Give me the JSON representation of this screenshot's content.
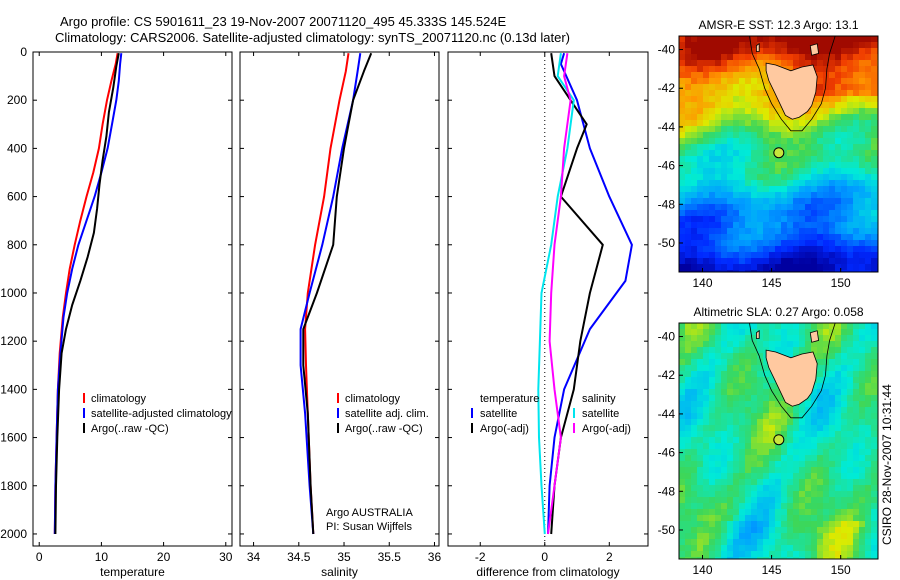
{
  "header": {
    "line1": "Argo profile: CS 5901611_23 19-Nov-2007 20071120_495 45.333S 145.524E",
    "line2": "Climatology: CARS2006. Satellite-adjusted climatology: synTS_20071120.nc (0.13d later)"
  },
  "side_label": "CSIRO 28-Nov-2007 10:31:44",
  "credit": {
    "line1": "Argo AUSTRALIA",
    "line2": "PI: Susan Wijffels"
  },
  "colors": {
    "red": "#ff0000",
    "blue": "#0000ff",
    "black": "#000000",
    "cyan": "#00e5ee",
    "magenta": "#ff00ff",
    "land": "#ffc9a0"
  },
  "chart_data": [
    {
      "id": "temperature",
      "type": "line",
      "xlabel": "temperature",
      "ylabel": "",
      "xlim": [
        -1,
        31
      ],
      "ylim": [
        2050,
        0
      ],
      "xticks": [
        "0",
        "10",
        "20",
        "30"
      ],
      "xtick_values": [
        0,
        10,
        20,
        30
      ],
      "yticks": [
        "0",
        "200",
        "400",
        "600",
        "800",
        "1000",
        "1200",
        "1400",
        "1600",
        "1800",
        "2000"
      ],
      "ytick_values": [
        0,
        200,
        400,
        600,
        800,
        1000,
        1200,
        1400,
        1600,
        1800,
        2000
      ],
      "legend": [
        "climatology",
        "satellite-adjusted climatology",
        "Argo(..raw -QC)"
      ],
      "series": [
        {
          "name": "climatology",
          "color": "#ff0000",
          "points": [
            [
              12.6,
              5
            ],
            [
              12.3,
              50
            ],
            [
              11.6,
              120
            ],
            [
              10.9,
              200
            ],
            [
              10.2,
              300
            ],
            [
              9.6,
              400
            ],
            [
              8.7,
              500
            ],
            [
              7.6,
              600
            ],
            [
              6.6,
              700
            ],
            [
              5.7,
              800
            ],
            [
              4.9,
              900
            ],
            [
              4.3,
              1000
            ],
            [
              3.8,
              1100
            ],
            [
              3.3,
              1250
            ],
            [
              3.0,
              1400
            ],
            [
              2.8,
              1600
            ],
            [
              2.6,
              1800
            ],
            [
              2.5,
              2000
            ]
          ]
        },
        {
          "name": "satellite-adjusted climatology",
          "color": "#0000ff",
          "points": [
            [
              13.2,
              5
            ],
            [
              13.0,
              50
            ],
            [
              12.8,
              120
            ],
            [
              12.4,
              200
            ],
            [
              11.7,
              300
            ],
            [
              11.0,
              400
            ],
            [
              10.0,
              500
            ],
            [
              8.9,
              600
            ],
            [
              7.6,
              700
            ],
            [
              6.3,
              800
            ],
            [
              5.3,
              900
            ],
            [
              4.5,
              1000
            ],
            [
              3.9,
              1100
            ],
            [
              3.4,
              1250
            ],
            [
              3.0,
              1400
            ],
            [
              2.8,
              1600
            ],
            [
              2.6,
              1800
            ],
            [
              2.5,
              2000
            ]
          ]
        },
        {
          "name": "Argo(..raw -QC)",
          "color": "#000000",
          "points": [
            [
              12.8,
              5
            ],
            [
              12.4,
              60
            ],
            [
              11.9,
              150
            ],
            [
              11.2,
              250
            ],
            [
              10.8,
              350
            ],
            [
              10.2,
              450
            ],
            [
              9.7,
              550
            ],
            [
              9.3,
              650
            ],
            [
              8.8,
              750
            ],
            [
              7.8,
              850
            ],
            [
              6.6,
              950
            ],
            [
              5.3,
              1050
            ],
            [
              4.3,
              1150
            ],
            [
              3.6,
              1250
            ],
            [
              3.2,
              1400
            ],
            [
              2.9,
              1600
            ],
            [
              2.7,
              1800
            ],
            [
              2.6,
              2000
            ]
          ]
        }
      ]
    },
    {
      "id": "salinity",
      "type": "line",
      "xlabel": "salinity",
      "ylabel": "",
      "xlim": [
        33.85,
        36.05
      ],
      "ylim": [
        2050,
        0
      ],
      "xticks": [
        "34",
        "34.5",
        "35",
        "35.5",
        "36"
      ],
      "xtick_values": [
        34,
        34.5,
        35,
        35.5,
        36
      ],
      "legend": [
        "climatology",
        "satellite adj. clim.",
        "Argo(..raw -QC)"
      ],
      "series": [
        {
          "name": "climatology",
          "color": "#ff0000",
          "points": [
            [
              35.05,
              5
            ],
            [
              35.02,
              80
            ],
            [
              34.95,
              200
            ],
            [
              34.85,
              400
            ],
            [
              34.78,
              600
            ],
            [
              34.68,
              800
            ],
            [
              34.6,
              1000
            ],
            [
              34.57,
              1150
            ],
            [
              34.58,
              1300
            ],
            [
              34.6,
              1500
            ],
            [
              34.63,
              1800
            ],
            [
              34.66,
              2000
            ]
          ]
        },
        {
          "name": "satellite adj. clim.",
          "color": "#0000ff",
          "points": [
            [
              35.18,
              5
            ],
            [
              35.15,
              80
            ],
            [
              35.1,
              200
            ],
            [
              34.98,
              400
            ],
            [
              34.88,
              600
            ],
            [
              34.76,
              800
            ],
            [
              34.62,
              1000
            ],
            [
              34.52,
              1150
            ],
            [
              34.52,
              1300
            ],
            [
              34.57,
              1500
            ],
            [
              34.62,
              1800
            ],
            [
              34.66,
              2000
            ]
          ]
        },
        {
          "name": "Argo(..raw -QC)",
          "color": "#000000",
          "points": [
            [
              35.3,
              5
            ],
            [
              35.22,
              80
            ],
            [
              35.1,
              200
            ],
            [
              35.05,
              300
            ],
            [
              35.0,
              400
            ],
            [
              34.92,
              600
            ],
            [
              34.88,
              800
            ],
            [
              34.7,
              1000
            ],
            [
              34.55,
              1150
            ],
            [
              34.55,
              1300
            ],
            [
              34.6,
              1500
            ],
            [
              34.63,
              1800
            ],
            [
              34.66,
              2000
            ]
          ]
        }
      ]
    },
    {
      "id": "difference",
      "type": "line",
      "xlabel": "difference from climatology",
      "ylabel": "",
      "xlim": [
        -3,
        3.2
      ],
      "ylim": [
        2050,
        0
      ],
      "xticks": [
        "-2",
        "0",
        "2"
      ],
      "xtick_values": [
        -2,
        0,
        2
      ],
      "legend": [
        "temperature",
        "satellite",
        "Argo(-adj)",
        "salinity",
        "satellite",
        "Argo(-adj)"
      ],
      "series": [
        {
          "name": "temperature satellite",
          "color": "#0000ff",
          "points": [
            [
              0.6,
              5
            ],
            [
              0.5,
              50
            ],
            [
              1.0,
              200
            ],
            [
              1.4,
              400
            ],
            [
              2.0,
              600
            ],
            [
              2.7,
              800
            ],
            [
              2.5,
              950
            ],
            [
              1.4,
              1150
            ],
            [
              0.6,
              1400
            ],
            [
              0.3,
              1600
            ],
            [
              0.15,
              1800
            ],
            [
              0.1,
              2000
            ]
          ]
        },
        {
          "name": "temperature Argo(-adj)",
          "color": "#000000",
          "points": [
            [
              0.2,
              5
            ],
            [
              0.3,
              100
            ],
            [
              1.3,
              300
            ],
            [
              1.0,
              400
            ],
            [
              0.5,
              600
            ],
            [
              1.8,
              800
            ],
            [
              1.4,
              1000
            ],
            [
              1.1,
              1200
            ],
            [
              0.9,
              1400
            ],
            [
              0.5,
              1600
            ],
            [
              0.3,
              1800
            ],
            [
              0.2,
              2000
            ]
          ]
        },
        {
          "name": "salinity satellite",
          "color": "#00e5ee",
          "points": [
            [
              0.5,
              5
            ],
            [
              0.4,
              100
            ],
            [
              0.9,
              200
            ],
            [
              0.7,
              400
            ],
            [
              0.4,
              600
            ],
            [
              0.2,
              800
            ],
            [
              -0.1,
              1000
            ],
            [
              -0.15,
              1200
            ],
            [
              -0.2,
              1400
            ],
            [
              -0.18,
              1600
            ],
            [
              -0.1,
              1800
            ],
            [
              0.0,
              2000
            ]
          ]
        },
        {
          "name": "salinity Argo(-adj)",
          "color": "#ff00ff",
          "points": [
            [
              0.7,
              5
            ],
            [
              0.6,
              100
            ],
            [
              0.8,
              200
            ],
            [
              0.6,
              400
            ],
            [
              0.5,
              600
            ],
            [
              0.3,
              800
            ],
            [
              0.2,
              1000
            ],
            [
              0.15,
              1200
            ],
            [
              0.3,
              1400
            ],
            [
              0.5,
              1600
            ],
            [
              0.3,
              1800
            ],
            [
              0.1,
              2000
            ]
          ]
        }
      ]
    },
    {
      "id": "sst_map",
      "type": "heatmap",
      "title": "AMSR-E SST: 12.3 Argo: 13.1",
      "xlim": [
        138.3,
        152.7
      ],
      "ylim": [
        -51.5,
        -39.3
      ],
      "xticks": [
        "140",
        "145",
        "150"
      ],
      "xtick_values": [
        140,
        145,
        150
      ],
      "yticks": [
        "-40",
        "-42",
        "-44",
        "-46",
        "-48",
        "-50"
      ],
      "ytick_values": [
        -40,
        -42,
        -44,
        -46,
        -48,
        -50
      ],
      "float_position": {
        "lon": 145.524,
        "lat": -45.333
      }
    },
    {
      "id": "sla_map",
      "type": "heatmap",
      "title": "Altimetric SLA: 0.27 Argo: 0.058",
      "xlim": [
        138.3,
        152.7
      ],
      "ylim": [
        -51.5,
        -39.3
      ],
      "xticks": [
        "140",
        "145",
        "150"
      ],
      "xtick_values": [
        140,
        145,
        150
      ],
      "yticks": [
        "-40",
        "-42",
        "-44",
        "-46",
        "-48",
        "-50"
      ],
      "ytick_values": [
        -40,
        -42,
        -44,
        -46,
        -48,
        -50
      ],
      "float_position": {
        "lon": 145.524,
        "lat": -45.333
      }
    }
  ]
}
